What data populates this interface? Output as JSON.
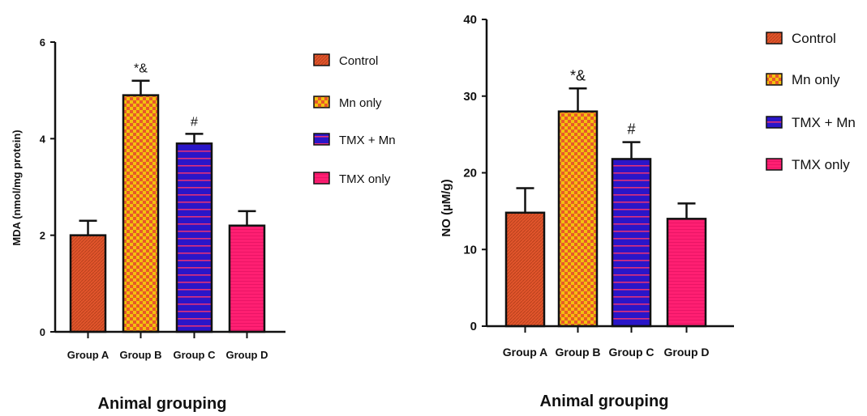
{
  "colors": {
    "axis": "#111111",
    "control_fill": "#e2552c",
    "control_stripe": "#b8401c",
    "mn_fill": "#f2c20e",
    "mn_check": "#e8582a",
    "tmx_mn_fill": "#2a16c8",
    "tmx_mn_stripe": "#e0307a",
    "tmx_only_fill": "#ff1f72"
  },
  "legend_icons": [
    "control-swatch",
    "mn-only-swatch",
    "tmx-mn-swatch",
    "tmx-only-swatch"
  ],
  "chart_data": [
    {
      "type": "bar",
      "title": "",
      "xlabel": "Animal grouping",
      "ylabel": "MDA (nmol/mg protein)",
      "ylim": [
        0,
        6
      ],
      "yticks": [
        "0",
        "2",
        "4",
        "6"
      ],
      "categories": [
        "Group A",
        "Group B",
        "Group C",
        "Group D"
      ],
      "series_names": [
        "Control",
        "Mn only",
        "TMX + Mn",
        "TMX only"
      ],
      "values": [
        2.0,
        4.9,
        3.9,
        2.2
      ],
      "errors": [
        0.3,
        0.3,
        0.2,
        0.3
      ],
      "annotations": [
        "",
        "*&",
        "#",
        ""
      ],
      "legend": "right",
      "grid": false
    },
    {
      "type": "bar",
      "title": "",
      "xlabel": "Animal grouping",
      "ylabel": "NO (µM/g)",
      "ylim": [
        0,
        40
      ],
      "yticks": [
        "0",
        "10",
        "20",
        "30",
        "40"
      ],
      "categories": [
        "Group A",
        "Group B",
        "Group C",
        "Group D"
      ],
      "series_names": [
        "Control",
        "Mn only",
        "TMX + Mn",
        "TMX only"
      ],
      "values": [
        14.8,
        28.0,
        21.8,
        14.0
      ],
      "errors": [
        3.2,
        3.0,
        2.2,
        2.0
      ],
      "annotations": [
        "",
        "*&",
        "#",
        ""
      ],
      "legend": "right",
      "grid": false
    }
  ]
}
